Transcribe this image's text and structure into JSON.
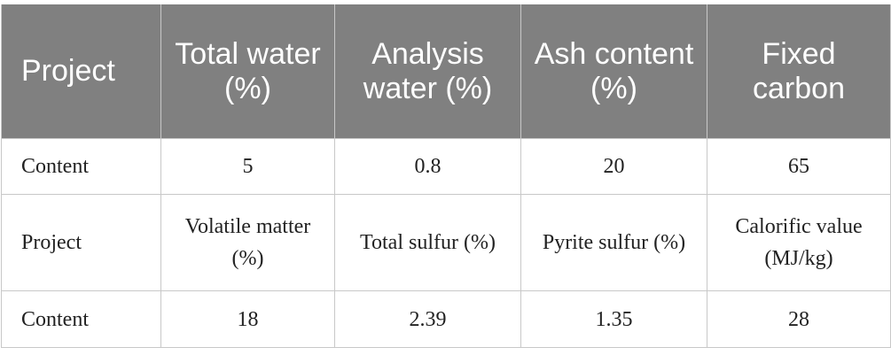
{
  "table": {
    "header": [
      "Project",
      "Total water (%)",
      "Analysis water (%)",
      "Ash content (%)",
      "Fixed carbon"
    ],
    "rows": [
      [
        "Content",
        "5",
        "0.8",
        "20",
        "65"
      ],
      [
        "Project",
        "Volatile matter (%)",
        "Total sulfur (%)",
        "Pyrite sulfur (%)",
        "Calorific value (MJ/kg)"
      ],
      [
        "Content",
        "18",
        "2.39",
        "1.35",
        "28"
      ]
    ]
  }
}
